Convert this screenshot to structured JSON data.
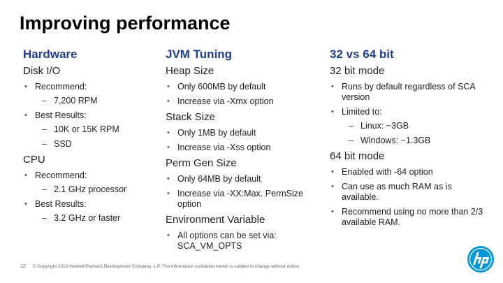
{
  "title": "Improving performance",
  "columns": [
    {
      "heading": "Hardware",
      "sections": [
        {
          "title": "Disk I/O",
          "bullets": [
            {
              "text": "Recommend:",
              "sub": [
                "7,200 RPM"
              ]
            },
            {
              "text": "Best Results:",
              "sub": [
                "10K or 15K RPM",
                "SSD"
              ]
            }
          ]
        },
        {
          "title": "CPU",
          "bullets": [
            {
              "text": "Recommend:",
              "sub": [
                "2.1 GHz processor"
              ]
            },
            {
              "text": "Best Results:",
              "sub": [
                "3.2 GHz or faster"
              ]
            }
          ]
        }
      ]
    },
    {
      "heading": "JVM Tuning",
      "sections": [
        {
          "title": "Heap Size",
          "bullets": [
            {
              "text": "Only 600MB by default"
            },
            {
              "text": "Increase via -Xmx option"
            }
          ]
        },
        {
          "title": "Stack Size",
          "bullets": [
            {
              "text": "Only 1MB by default"
            },
            {
              "text": "Increase via -Xss option"
            }
          ]
        },
        {
          "title": "Perm Gen Size",
          "bullets": [
            {
              "text": "Only 64MB by default"
            },
            {
              "text": "Increase via -XX:Max. PermSize option"
            }
          ]
        },
        {
          "title": "Environment Variable",
          "bullets": [
            {
              "text": "All options can be set via: SCA_VM_OPTS"
            }
          ]
        }
      ]
    },
    {
      "heading": "32 vs 64 bit",
      "sections": [
        {
          "title": "32 bit mode",
          "bullets": [
            {
              "text": "Runs by default regardless of SCA version"
            },
            {
              "text": "Limited to:",
              "sub": [
                "Linux: ~3GB",
                "Windows: ~1.3GB"
              ]
            }
          ]
        },
        {
          "title": "64 bit mode",
          "bullets": [
            {
              "text": "Enabled with -64 option"
            },
            {
              "text": "Can use as much RAM as is available."
            },
            {
              "text": "Recommend using no more than 2/3 available RAM."
            }
          ]
        }
      ]
    }
  ],
  "footer": {
    "page": "12",
    "copyright": "© Copyright 2013 Hewlett-Packard Development Company, L.P. The information contained herein is subject to change without notice."
  },
  "logo": {
    "icon": "hp-logo-icon",
    "text": "hp",
    "color": "#0096d6"
  },
  "colors": {
    "heading": "#1f3e8c",
    "text": "#222222"
  }
}
